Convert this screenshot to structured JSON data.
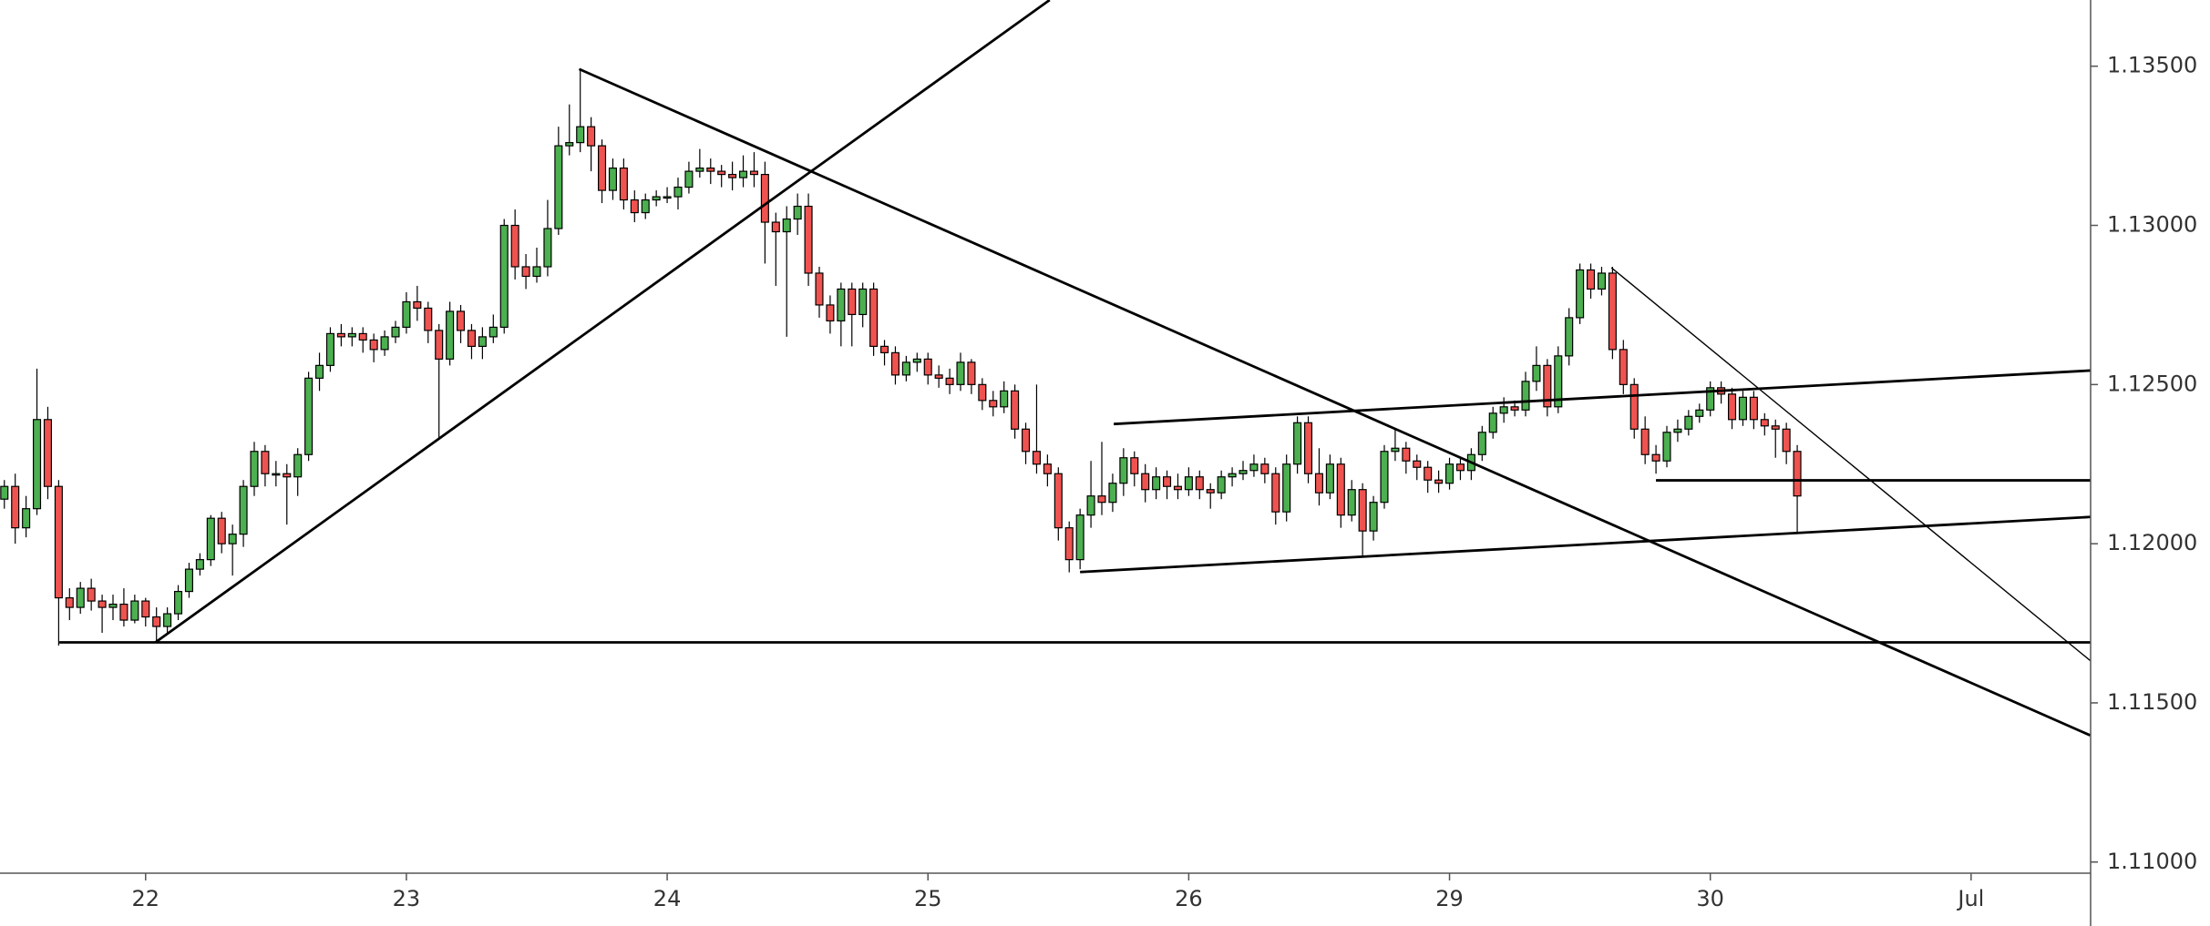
{
  "chart_data": {
    "type": "candlestick",
    "up_color": "#4caf50",
    "down_color": "#ef5350",
    "border_color": "#000000",
    "xlim": [
      -0.4,
      192
    ],
    "ylim": [
      1.10965,
      1.13708
    ],
    "xticks": [
      {
        "value": 13,
        "label": "22"
      },
      {
        "value": 37,
        "label": "23"
      },
      {
        "value": 61,
        "label": "24"
      },
      {
        "value": 85,
        "label": "25"
      },
      {
        "value": 109,
        "label": "26"
      },
      {
        "value": 133,
        "label": "29"
      },
      {
        "value": 157,
        "label": "30"
      },
      {
        "value": 181,
        "label": "Jul"
      }
    ],
    "yticks": [
      {
        "value": 1.11,
        "label": "1.11000"
      },
      {
        "value": 1.115,
        "label": "1.11500"
      },
      {
        "value": 1.12,
        "label": "1.12000"
      },
      {
        "value": 1.125,
        "label": "1.12500"
      },
      {
        "value": 1.13,
        "label": "1.13000"
      },
      {
        "value": 1.135,
        "label": "1.13500"
      }
    ],
    "open": [
      1.1214,
      1.1218,
      1.1205,
      1.1211,
      1.1239,
      1.1218,
      1.1183,
      1.118,
      1.1186,
      1.1182,
      1.118,
      1.1181,
      1.1176,
      1.1182,
      1.1177,
      1.1174,
      1.1178,
      1.1185,
      1.1192,
      1.1195,
      1.1208,
      1.12,
      1.1203,
      1.1218,
      1.1229,
      1.1222,
      1.1222,
      1.1221,
      1.1228,
      1.1252,
      1.1256,
      1.1266,
      1.1265,
      1.1266,
      1.1264,
      1.1261,
      1.1265,
      1.1268,
      1.1276,
      1.1274,
      1.1267,
      1.1258,
      1.1273,
      1.1267,
      1.1262,
      1.1265,
      1.1268,
      1.13,
      1.1287,
      1.1284,
      1.1287,
      1.1299,
      1.1325,
      1.1326,
      1.1331,
      1.1325,
      1.1311,
      1.1318,
      1.1308,
      1.1304,
      1.1308,
      1.1309,
      1.1309,
      1.1312,
      1.1317,
      1.1318,
      1.1317,
      1.1316,
      1.1315,
      1.1317,
      1.1316,
      1.1301,
      1.1298,
      1.1302,
      1.1306,
      1.1285,
      1.1275,
      1.127,
      1.128,
      1.1272,
      1.128,
      1.1262,
      1.126,
      1.1253,
      1.1257,
      1.1258,
      1.1253,
      1.1252,
      1.125,
      1.1257,
      1.125,
      1.1245,
      1.1243,
      1.1248,
      1.1236,
      1.1229,
      1.1225,
      1.1222,
      1.1205,
      1.1195,
      1.1209,
      1.1215,
      1.1213,
      1.1219,
      1.1227,
      1.1222,
      1.1217,
      1.1221,
      1.1218,
      1.1217,
      1.1221,
      1.1217,
      1.1216,
      1.1221,
      1.1222,
      1.1223,
      1.1225,
      1.1222,
      1.121,
      1.1225,
      1.1238,
      1.1222,
      1.1216,
      1.1225,
      1.1209,
      1.1217,
      1.1204,
      1.1213,
      1.1229,
      1.123,
      1.1226,
      1.1224,
      1.122,
      1.1219,
      1.1225,
      1.1223,
      1.1228,
      1.1235,
      1.1241,
      1.1243,
      1.1242,
      1.1251,
      1.1256,
      1.1243,
      1.1259,
      1.1271,
      1.1286,
      1.128,
      1.1285,
      1.1261,
      1.125,
      1.1236,
      1.1228,
      1.1226,
      1.1235,
      1.1236,
      1.124,
      1.1242,
      1.1249,
      1.1247,
      1.1239,
      1.1246,
      1.1239,
      1.1237,
      1.1236,
      1.1229
    ],
    "high": [
      1.122,
      1.1222,
      1.1215,
      1.1255,
      1.1243,
      1.122,
      1.1186,
      1.1188,
      1.1189,
      1.1184,
      1.1184,
      1.1186,
      1.1184,
      1.1183,
      1.118,
      1.118,
      1.1187,
      1.1194,
      1.1197,
      1.1209,
      1.121,
      1.1206,
      1.122,
      1.1232,
      1.1231,
      1.1226,
      1.1225,
      1.123,
      1.1254,
      1.126,
      1.1268,
      1.1269,
      1.1268,
      1.1268,
      1.1266,
      1.1267,
      1.127,
      1.1279,
      1.1281,
      1.1276,
      1.1269,
      1.1276,
      1.1275,
      1.1269,
      1.1268,
      1.1272,
      1.1302,
      1.1305,
      1.1291,
      1.1293,
      1.1308,
      1.1331,
      1.1338,
      1.1349,
      1.1334,
      1.1327,
      1.1321,
      1.1321,
      1.1311,
      1.131,
      1.1311,
      1.1312,
      1.1315,
      1.132,
      1.1324,
      1.1321,
      1.1319,
      1.132,
      1.1322,
      1.1323,
      1.132,
      1.1304,
      1.1306,
      1.131,
      1.131,
      1.1287,
      1.1278,
      1.1282,
      1.1282,
      1.1282,
      1.1282,
      1.1264,
      1.1262,
      1.1259,
      1.126,
      1.126,
      1.1256,
      1.1255,
      1.126,
      1.1258,
      1.1252,
      1.1248,
      1.1251,
      1.125,
      1.1238,
      1.125,
      1.1228,
      1.1224,
      1.1207,
      1.1211,
      1.1226,
      1.1232,
      1.1222,
      1.123,
      1.1229,
      1.1225,
      1.1224,
      1.1223,
      1.1222,
      1.1224,
      1.1223,
      1.1219,
      1.1223,
      1.1224,
      1.1226,
      1.1228,
      1.1227,
      1.1224,
      1.1228,
      1.124,
      1.124,
      1.123,
      1.1228,
      1.1227,
      1.122,
      1.1219,
      1.1215,
      1.1231,
      1.1236,
      1.1232,
      1.1228,
      1.1226,
      1.1223,
      1.1227,
      1.1227,
      1.123,
      1.1237,
      1.1243,
      1.1246,
      1.1245,
      1.1254,
      1.1262,
      1.1258,
      1.1262,
      1.1274,
      1.1288,
      1.1288,
      1.1287,
      1.1287,
      1.1264,
      1.1252,
      1.124,
      1.1231,
      1.1237,
      1.1239,
      1.1242,
      1.1244,
      1.1251,
      1.1251,
      1.1249,
      1.1248,
      1.1248,
      1.1241,
      1.1239,
      1.1238,
      1.1231
    ],
    "low": [
      1.1211,
      1.12,
      1.1202,
      1.1209,
      1.1214,
      1.1168,
      1.1176,
      1.1178,
      1.1179,
      1.1172,
      1.1176,
      1.1174,
      1.1175,
      1.1174,
      1.1169,
      1.1172,
      1.1176,
      1.1183,
      1.119,
      1.1193,
      1.1197,
      1.119,
      1.1199,
      1.1215,
      1.1218,
      1.1218,
      1.1206,
      1.1215,
      1.1226,
      1.1248,
      1.1254,
      1.1262,
      1.1262,
      1.126,
      1.1257,
      1.1259,
      1.1263,
      1.1266,
      1.127,
      1.1263,
      1.1233,
      1.1256,
      1.1263,
      1.1258,
      1.1258,
      1.1263,
      1.1266,
      1.1283,
      1.128,
      1.1282,
      1.1284,
      1.1297,
      1.1322,
      1.1323,
      1.1317,
      1.1307,
      1.1308,
      1.1305,
      1.1301,
      1.1302,
      1.1306,
      1.1307,
      1.1305,
      1.131,
      1.1315,
      1.1313,
      1.1312,
      1.1311,
      1.1312,
      1.1312,
      1.1288,
      1.1281,
      1.1265,
      1.1297,
      1.1281,
      1.1271,
      1.1266,
      1.1262,
      1.1262,
      1.1268,
      1.1259,
      1.1256,
      1.125,
      1.1251,
      1.1254,
      1.125,
      1.1249,
      1.1247,
      1.1248,
      1.1247,
      1.1242,
      1.124,
      1.1241,
      1.1233,
      1.1225,
      1.1222,
      1.1218,
      1.1201,
      1.1191,
      1.1192,
      1.1205,
      1.1209,
      1.121,
      1.1215,
      1.1218,
      1.1213,
      1.1214,
      1.1214,
      1.1214,
      1.1215,
      1.1214,
      1.1211,
      1.1214,
      1.1218,
      1.122,
      1.1221,
      1.1219,
      1.1206,
      1.1207,
      1.1222,
      1.1219,
      1.1212,
      1.1214,
      1.1205,
      1.1207,
      1.1196,
      1.1201,
      1.1211,
      1.1226,
      1.1222,
      1.122,
      1.1216,
      1.1216,
      1.1217,
      1.122,
      1.122,
      1.1226,
      1.1233,
      1.1238,
      1.124,
      1.124,
      1.1248,
      1.124,
      1.1241,
      1.1256,
      1.1269,
      1.1277,
      1.1278,
      1.1258,
      1.1247,
      1.1233,
      1.1225,
      1.1222,
      1.1224,
      1.1232,
      1.1234,
      1.1238,
      1.124,
      1.1244,
      1.1236,
      1.1237,
      1.1236,
      1.1234,
      1.1227,
      1.1225,
      1.1203
    ],
    "close": [
      1.1218,
      1.1205,
      1.1211,
      1.1239,
      1.1218,
      1.1183,
      1.118,
      1.1186,
      1.1182,
      1.118,
      1.1181,
      1.1176,
      1.1182,
      1.1177,
      1.1174,
      1.1178,
      1.1185,
      1.1192,
      1.1195,
      1.1208,
      1.12,
      1.1203,
      1.1218,
      1.1229,
      1.1222,
      1.1222,
      1.1221,
      1.1228,
      1.1252,
      1.1256,
      1.1266,
      1.1265,
      1.1266,
      1.1264,
      1.1261,
      1.1265,
      1.1268,
      1.1276,
      1.1274,
      1.1267,
      1.1258,
      1.1273,
      1.1267,
      1.1262,
      1.1265,
      1.1268,
      1.13,
      1.1287,
      1.1284,
      1.1287,
      1.1299,
      1.1325,
      1.1326,
      1.1331,
      1.1325,
      1.1311,
      1.1318,
      1.1308,
      1.1304,
      1.1308,
      1.1309,
      1.1309,
      1.1312,
      1.1317,
      1.1318,
      1.1317,
      1.1316,
      1.1315,
      1.1317,
      1.1316,
      1.1301,
      1.1298,
      1.1302,
      1.1306,
      1.1285,
      1.1275,
      1.127,
      1.128,
      1.1272,
      1.128,
      1.1262,
      1.126,
      1.1253,
      1.1257,
      1.1258,
      1.1253,
      1.1252,
      1.125,
      1.1257,
      1.125,
      1.1245,
      1.1243,
      1.1248,
      1.1236,
      1.1229,
      1.1225,
      1.1222,
      1.1205,
      1.1195,
      1.1209,
      1.1215,
      1.1213,
      1.1219,
      1.1227,
      1.1222,
      1.1217,
      1.1221,
      1.1218,
      1.1217,
      1.1221,
      1.1217,
      1.1216,
      1.1221,
      1.1222,
      1.1223,
      1.1225,
      1.1222,
      1.121,
      1.1225,
      1.1238,
      1.1222,
      1.1216,
      1.1225,
      1.1209,
      1.1217,
      1.1204,
      1.1213,
      1.1229,
      1.123,
      1.1226,
      1.1224,
      1.122,
      1.1219,
      1.1225,
      1.1223,
      1.1228,
      1.1235,
      1.1241,
      1.1243,
      1.1242,
      1.1251,
      1.1256,
      1.1243,
      1.1259,
      1.1271,
      1.1286,
      1.128,
      1.1285,
      1.1261,
      1.125,
      1.1236,
      1.1228,
      1.1226,
      1.1235,
      1.1236,
      1.124,
      1.1242,
      1.1249,
      1.1247,
      1.1239,
      1.1246,
      1.1239,
      1.1237,
      1.1236,
      1.1229,
      1.1215
    ],
    "lines": [
      {
        "x": [
          13.9,
          96.2
        ],
        "y": [
          1.1169,
          1.13708
        ],
        "width": 2
      },
      {
        "x": [
          52.9,
          191.96
        ],
        "y": [
          1.13491,
          1.11398
        ],
        "width": 2
      },
      {
        "x": [
          5.06,
          191.96
        ],
        "y": [
          1.1169,
          1.1169
        ],
        "width": 2
      },
      {
        "x": [
          102.1,
          191.96
        ],
        "y": [
          1.12376,
          1.12544
        ],
        "width": 2
      },
      {
        "x": [
          99.0,
          191.96
        ],
        "y": [
          1.11911,
          1.12084
        ],
        "width": 2
      },
      {
        "x": [
          147.9,
          191.96
        ],
        "y": [
          1.12867,
          1.11633
        ],
        "width": 1
      },
      {
        "x": [
          152.0,
          191.96
        ],
        "y": [
          1.12199,
          1.12199
        ],
        "width": 2
      }
    ]
  }
}
